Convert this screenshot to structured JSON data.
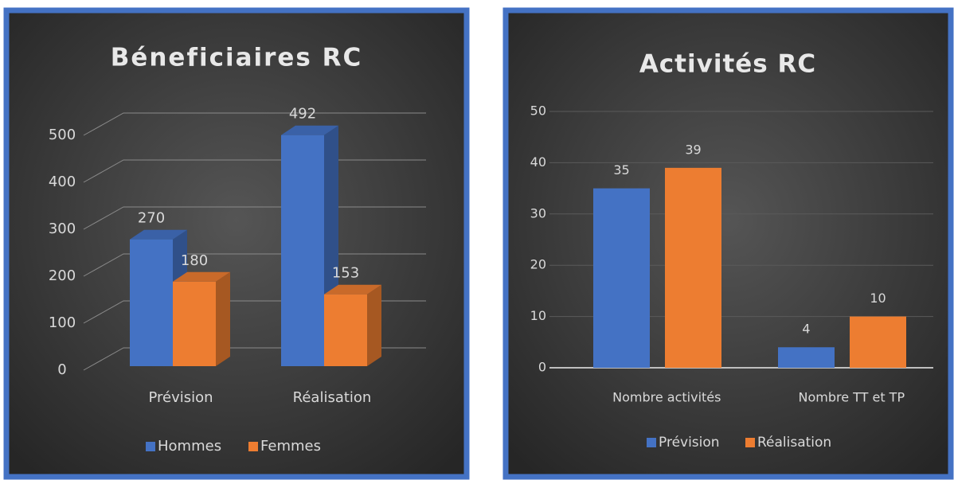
{
  "chart_data": [
    {
      "type": "bar3d",
      "title": "Béneficiaires RC",
      "categories": [
        "Prévision",
        "Réalisation"
      ],
      "series": [
        {
          "name": "Hommes",
          "color": "#4472c4",
          "values": [
            270,
            492
          ]
        },
        {
          "name": "Femmes",
          "color": "#ed7d31",
          "values": [
            180,
            153
          ]
        }
      ],
      "ylim": [
        0,
        500
      ],
      "yticks": [
        0,
        100,
        200,
        300,
        400,
        500
      ],
      "grid": true,
      "legend": "bottom"
    },
    {
      "type": "bar",
      "title": "Activités RC",
      "categories": [
        "Nombre activités",
        "Nombre TT et TP"
      ],
      "series": [
        {
          "name": "Prévision",
          "color": "#4472c4",
          "values": [
            35,
            4
          ]
        },
        {
          "name": "Réalisation",
          "color": "#ed7d31",
          "values": [
            39,
            10
          ]
        }
      ],
      "ylim": [
        0,
        50
      ],
      "yticks": [
        0,
        10,
        20,
        30,
        40,
        50
      ],
      "grid": true,
      "legend": "bottom"
    }
  ]
}
